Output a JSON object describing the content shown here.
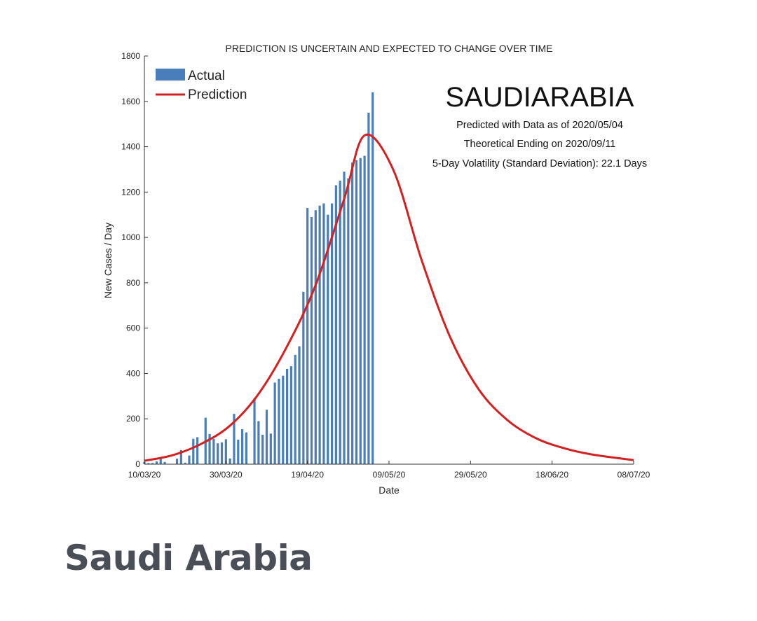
{
  "caption": "Saudi Arabia",
  "chart_data": {
    "type": "bar",
    "title": "PREDICTION IS UNCERTAIN AND EXPECTED TO CHANGE OVER TIME",
    "xlabel": "Date",
    "ylabel": "New Cases / Day",
    "ylim": [
      0,
      1800
    ],
    "yticks": [
      0,
      200,
      400,
      600,
      800,
      1000,
      1200,
      1400,
      1600,
      1800
    ],
    "xlim": [
      "2020-03-10",
      "2020-07-08"
    ],
    "xticks": [
      {
        "date": "2020-03-10",
        "label": "10/03/20"
      },
      {
        "date": "2020-03-30",
        "label": "30/03/20"
      },
      {
        "date": "2020-04-19",
        "label": "19/04/20"
      },
      {
        "date": "2020-05-09",
        "label": "09/05/20"
      },
      {
        "date": "2020-05-29",
        "label": "29/05/20"
      },
      {
        "date": "2020-06-18",
        "label": "18/06/20"
      },
      {
        "date": "2020-07-08",
        "label": "08/07/20"
      }
    ],
    "grid": false,
    "legend_position": "top-left",
    "colors": {
      "actual": "#4a7ebb",
      "prediction": "#d42020"
    },
    "annotations": {
      "country": "SAUDIARABIA",
      "line1": "Predicted with Data as of 2020/05/04",
      "line2": "Theoretical Ending on 2020/09/11",
      "line3": "5-Day Volatility (Standard Deviation): 22.1 Days"
    },
    "series": [
      {
        "name": "Actual",
        "type": "bar",
        "x_start": "2020-03-10",
        "values": [
          10,
          5,
          5,
          12,
          24,
          10,
          0,
          0,
          24,
          62,
          6,
          38,
          112,
          119,
          0,
          205,
          133,
          112,
          92,
          96,
          110,
          25,
          222,
          108,
          154,
          140,
          0,
          290,
          190,
          130,
          240,
          135,
          360,
          377,
          390,
          420,
          432,
          482,
          520,
          760,
          1130,
          1090,
          1120,
          1140,
          1150,
          1100,
          1150,
          1230,
          1250,
          1290,
          1260,
          1330,
          1340,
          1350,
          1360,
          1550,
          1640
        ]
      },
      {
        "name": "Prediction",
        "type": "line",
        "peak": {
          "date": "2020-05-03",
          "value": 1450
        },
        "points": [
          [
            "2020-03-10",
            15
          ],
          [
            "2020-03-17",
            40
          ],
          [
            "2020-03-24",
            90
          ],
          [
            "2020-03-31",
            170
          ],
          [
            "2020-04-07",
            310
          ],
          [
            "2020-04-14",
            520
          ],
          [
            "2020-04-21",
            790
          ],
          [
            "2020-04-28",
            1170
          ],
          [
            "2020-05-03",
            1450
          ],
          [
            "2020-05-10",
            1300
          ],
          [
            "2020-05-17",
            900
          ],
          [
            "2020-05-24",
            560
          ],
          [
            "2020-05-31",
            330
          ],
          [
            "2020-06-07",
            195
          ],
          [
            "2020-06-14",
            115
          ],
          [
            "2020-06-21",
            70
          ],
          [
            "2020-06-28",
            42
          ],
          [
            "2020-07-08",
            18
          ]
        ]
      }
    ]
  }
}
